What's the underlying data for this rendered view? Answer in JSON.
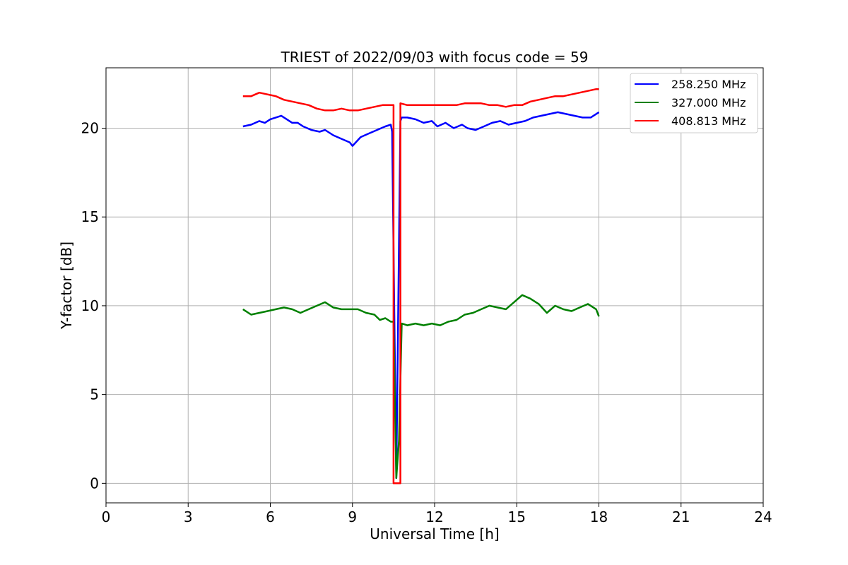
{
  "chart_data": {
    "type": "line",
    "title": "TRIEST of 2022/09/03 with focus code = 59",
    "xlabel": "Universal Time [h]",
    "ylabel": "Y-factor [dB]",
    "xlim": [
      0,
      24
    ],
    "ylim": [
      -1.1,
      23.4
    ],
    "xticks": [
      0,
      3,
      6,
      9,
      12,
      15,
      18,
      21,
      24
    ],
    "yticks": [
      0,
      5,
      10,
      15,
      20
    ],
    "grid": true,
    "legend_position": "top-right",
    "series": [
      {
        "name": "258.250 MHz",
        "color": "#0000ff",
        "x": [
          5.0,
          5.3,
          5.6,
          5.8,
          6.0,
          6.2,
          6.4,
          6.6,
          6.8,
          7.0,
          7.2,
          7.5,
          7.8,
          8.0,
          8.3,
          8.6,
          8.9,
          9.0,
          9.3,
          9.6,
          9.9,
          10.2,
          10.4,
          10.45,
          10.6,
          10.75,
          10.8,
          11.0,
          11.3,
          11.6,
          11.9,
          12.1,
          12.4,
          12.7,
          13.0,
          13.2,
          13.5,
          13.8,
          14.1,
          14.4,
          14.7,
          15.0,
          15.3,
          15.6,
          15.9,
          16.2,
          16.5,
          16.8,
          17.1,
          17.4,
          17.7,
          18.0
        ],
        "y": [
          20.1,
          20.2,
          20.4,
          20.3,
          20.5,
          20.6,
          20.7,
          20.5,
          20.3,
          20.3,
          20.1,
          19.9,
          19.8,
          19.9,
          19.6,
          19.4,
          19.2,
          19.0,
          19.5,
          19.7,
          19.9,
          20.1,
          20.2,
          19.8,
          0.3,
          20.4,
          20.6,
          20.6,
          20.5,
          20.3,
          20.4,
          20.1,
          20.3,
          20.0,
          20.2,
          20.0,
          19.9,
          20.1,
          20.3,
          20.4,
          20.2,
          20.3,
          20.4,
          20.6,
          20.7,
          20.8,
          20.9,
          20.8,
          20.7,
          20.6,
          20.6,
          20.9
        ]
      },
      {
        "name": "327.000 MHz",
        "color": "#008000",
        "x": [
          5.0,
          5.3,
          5.6,
          5.9,
          6.2,
          6.5,
          6.8,
          7.1,
          7.4,
          7.7,
          8.0,
          8.3,
          8.6,
          8.9,
          9.2,
          9.5,
          9.8,
          10.0,
          10.2,
          10.4,
          10.5,
          10.6,
          10.7,
          10.8,
          11.0,
          11.3,
          11.6,
          11.9,
          12.2,
          12.5,
          12.8,
          13.1,
          13.4,
          13.7,
          14.0,
          14.3,
          14.6,
          14.9,
          15.2,
          15.5,
          15.8,
          16.1,
          16.4,
          16.7,
          17.0,
          17.3,
          17.6,
          17.9,
          18.0
        ],
        "y": [
          9.8,
          9.5,
          9.6,
          9.7,
          9.8,
          9.9,
          9.8,
          9.6,
          9.8,
          10.0,
          10.2,
          9.9,
          9.8,
          9.8,
          9.8,
          9.6,
          9.5,
          9.2,
          9.3,
          9.1,
          9.1,
          0.3,
          2.4,
          9.0,
          8.9,
          9.0,
          8.9,
          9.0,
          8.9,
          9.1,
          9.2,
          9.5,
          9.6,
          9.8,
          10.0,
          9.9,
          9.8,
          10.2,
          10.6,
          10.4,
          10.1,
          9.6,
          10.0,
          9.8,
          9.7,
          9.9,
          10.1,
          9.8,
          9.4
        ]
      },
      {
        "name": "408.813 MHz",
        "color": "#ff0000",
        "x": [
          5.0,
          5.3,
          5.6,
          5.9,
          6.2,
          6.5,
          6.8,
          7.1,
          7.4,
          7.7,
          8.0,
          8.3,
          8.6,
          8.9,
          9.2,
          9.5,
          9.8,
          10.1,
          10.4,
          10.5,
          10.5,
          10.75,
          10.75,
          11.0,
          11.3,
          11.6,
          11.9,
          12.2,
          12.5,
          12.8,
          13.1,
          13.4,
          13.7,
          14.0,
          14.3,
          14.6,
          14.9,
          15.2,
          15.5,
          15.8,
          16.1,
          16.4,
          16.7,
          17.0,
          17.3,
          17.6,
          17.9,
          18.0
        ],
        "y": [
          21.8,
          21.8,
          22.0,
          21.9,
          21.8,
          21.6,
          21.5,
          21.4,
          21.3,
          21.1,
          21.0,
          21.0,
          21.1,
          21.0,
          21.0,
          21.1,
          21.2,
          21.3,
          21.3,
          21.3,
          0.0,
          0.0,
          21.4,
          21.3,
          21.3,
          21.3,
          21.3,
          21.3,
          21.3,
          21.3,
          21.4,
          21.4,
          21.4,
          21.3,
          21.3,
          21.2,
          21.3,
          21.3,
          21.5,
          21.6,
          21.7,
          21.8,
          21.8,
          21.9,
          22.0,
          22.1,
          22.2,
          22.2
        ]
      }
    ]
  }
}
